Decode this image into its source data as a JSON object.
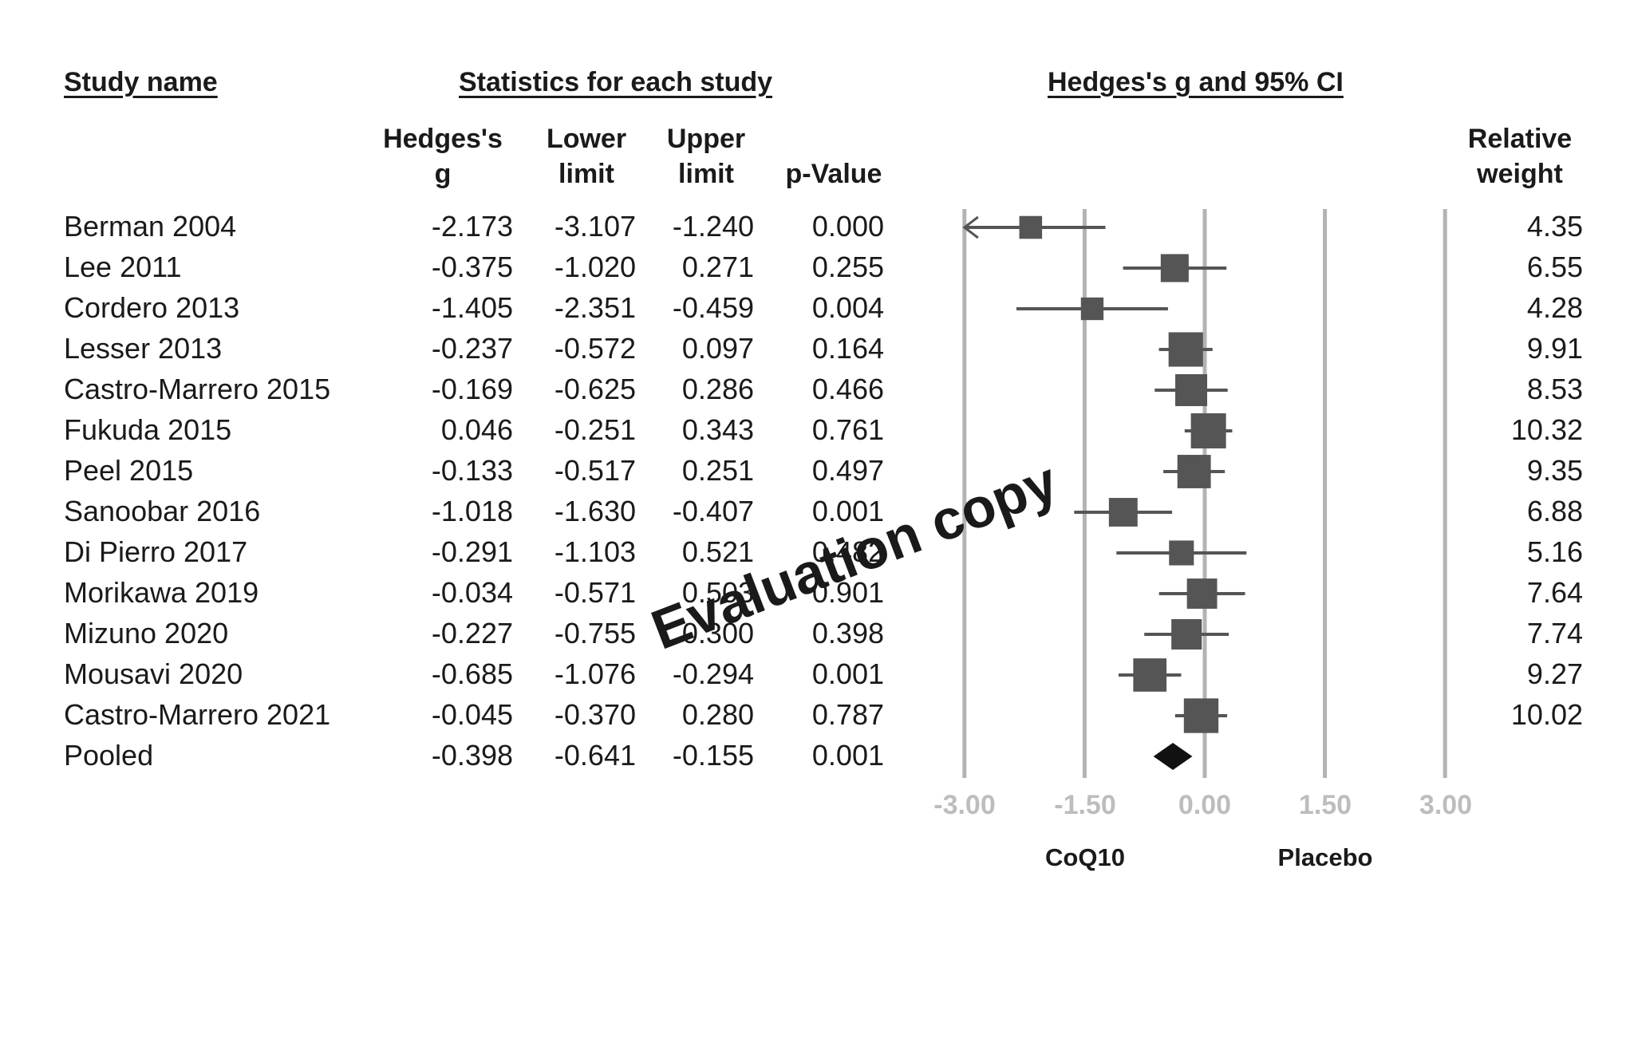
{
  "headers": {
    "study_name": "Study name",
    "statistics": "Statistics for each study",
    "plot_title": "Hedges's g and 95% CI"
  },
  "columns": {
    "hedges_g": [
      "Hedges's",
      "g"
    ],
    "lower": [
      "Lower",
      "limit"
    ],
    "upper": [
      "Upper",
      "limit"
    ],
    "p_value": "p-Value",
    "weight": [
      "Relative",
      "weight"
    ]
  },
  "rows": [
    {
      "study": "Berman 2004",
      "g": "-2.173",
      "lower": "-3.107",
      "upper": "-1.240",
      "p": "0.000",
      "weight": "4.35"
    },
    {
      "study": "Lee 2011",
      "g": "-0.375",
      "lower": "-1.020",
      "upper": "0.271",
      "p": "0.255",
      "weight": "6.55"
    },
    {
      "study": "Cordero 2013",
      "g": "-1.405",
      "lower": "-2.351",
      "upper": "-0.459",
      "p": "0.004",
      "weight": "4.28"
    },
    {
      "study": "Lesser 2013",
      "g": "-0.237",
      "lower": "-0.572",
      "upper": "0.097",
      "p": "0.164",
      "weight": "9.91"
    },
    {
      "study": "Castro-Marrero 2015",
      "g": "-0.169",
      "lower": "-0.625",
      "upper": "0.286",
      "p": "0.466",
      "weight": "8.53"
    },
    {
      "study": "Fukuda 2015",
      "g": "0.046",
      "lower": "-0.251",
      "upper": "0.343",
      "p": "0.761",
      "weight": "10.32"
    },
    {
      "study": "Peel 2015",
      "g": "-0.133",
      "lower": "-0.517",
      "upper": "0.251",
      "p": "0.497",
      "weight": "9.35"
    },
    {
      "study": "Sanoobar 2016",
      "g": "-1.018",
      "lower": "-1.630",
      "upper": "-0.407",
      "p": "0.001",
      "weight": "6.88"
    },
    {
      "study": "Di Pierro 2017",
      "g": "-0.291",
      "lower": "-1.103",
      "upper": "0.521",
      "p": "0.482",
      "weight": "5.16"
    },
    {
      "study": "Morikawa 2019",
      "g": "-0.034",
      "lower": "-0.571",
      "upper": "0.503",
      "p": "0.901",
      "weight": "7.64"
    },
    {
      "study": "Mizuno 2020",
      "g": "-0.227",
      "lower": "-0.755",
      "upper": "0.300",
      "p": "0.398",
      "weight": "7.74"
    },
    {
      "study": "Mousavi 2020",
      "g": "-0.685",
      "lower": "-1.076",
      "upper": "-0.294",
      "p": "0.001",
      "weight": "9.27"
    },
    {
      "study": "Castro-Marrero 2021",
      "g": "-0.045",
      "lower": "-0.370",
      "upper": "0.280",
      "p": "0.787",
      "weight": "10.02"
    },
    {
      "study": "Pooled",
      "g": "-0.398",
      "lower": "-0.641",
      "upper": "-0.155",
      "p": "0.001",
      "weight": ""
    }
  ],
  "axis": {
    "ticks": [
      "-3.00",
      "-1.50",
      "0.00",
      "1.50",
      "3.00"
    ],
    "left_label": "CoQ10",
    "right_label": "Placebo"
  },
  "watermark": "Evaluation copy",
  "chart_data": {
    "type": "forest",
    "title": "Hedges's g and 95% CI",
    "xlim": [
      -3.0,
      3.0
    ],
    "xticks": [
      -3.0,
      -1.5,
      0.0,
      1.5,
      3.0
    ],
    "grid": true,
    "studies": [
      "Berman 2004",
      "Lee 2011",
      "Cordero 2013",
      "Lesser 2013",
      "Castro-Marrero 2015",
      "Fukuda 2015",
      "Peel 2015",
      "Sanoobar 2016",
      "Di Pierro 2017",
      "Morikawa 2019",
      "Mizuno 2020",
      "Mousavi 2020",
      "Castro-Marrero 2021"
    ],
    "g": [
      -2.173,
      -0.375,
      -1.405,
      -0.237,
      -0.169,
      0.046,
      -0.133,
      -1.018,
      -0.291,
      -0.034,
      -0.227,
      -0.685,
      -0.045
    ],
    "lower": [
      -3.107,
      -1.02,
      -2.351,
      -0.572,
      -0.625,
      -0.251,
      -0.517,
      -1.63,
      -1.103,
      -0.571,
      -0.755,
      -1.076,
      -0.37
    ],
    "upper": [
      -1.24,
      0.271,
      -0.459,
      0.097,
      0.286,
      0.343,
      0.251,
      -0.407,
      0.521,
      0.503,
      0.3,
      -0.294,
      0.28
    ],
    "weights": [
      4.35,
      6.55,
      4.28,
      9.91,
      8.53,
      10.32,
      9.35,
      6.88,
      5.16,
      7.64,
      7.74,
      9.27,
      10.02
    ],
    "pooled": {
      "g": -0.398,
      "lower": -0.641,
      "upper": -0.155
    },
    "colors": {
      "marker": "#555555",
      "pooled": "#111111",
      "grid": "#b3b3b3"
    }
  }
}
